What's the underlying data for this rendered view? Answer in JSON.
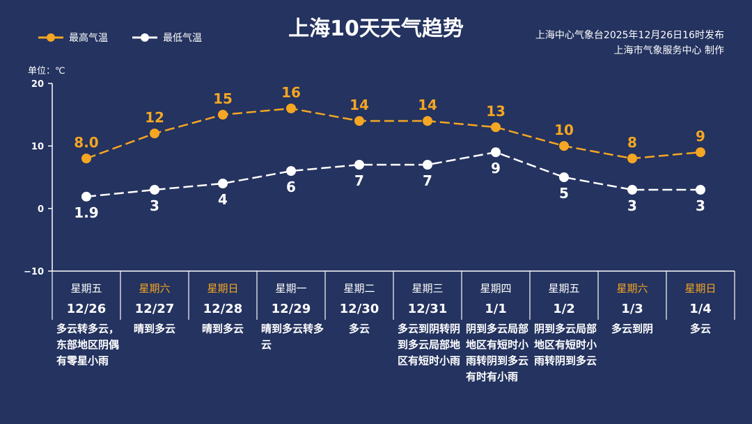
{
  "title": "上海10天天气趋势",
  "info": {
    "line1": "上海中心气象台2025年12月26日16时发布",
    "line2": "上海市气象服务中心 制作"
  },
  "unit": "单位：℃",
  "colors": {
    "background": "#24335f",
    "high": "#f5a623",
    "low": "#ffffff",
    "weekend": "#f5a623"
  },
  "chart_data": {
    "type": "line",
    "title": "上海10天天气趋势",
    "ylim": [
      -10,
      20
    ],
    "yticks": [
      "20",
      "10",
      "0",
      "−10"
    ],
    "ytick_values": [
      20,
      10,
      0,
      -10
    ],
    "grid": false,
    "legend_placement": "top-left",
    "categories": [
      "12/26",
      "12/27",
      "12/28",
      "12/29",
      "12/30",
      "12/31",
      "1/1",
      "1/2",
      "1/3",
      "1/4"
    ],
    "series": [
      {
        "name": "最高气温",
        "values": [
          8.0,
          12,
          15,
          16,
          14,
          14,
          13,
          10,
          8,
          9
        ],
        "labels": [
          "8.0",
          "12",
          "15",
          "16",
          "14",
          "14",
          "13",
          "10",
          "8",
          "9"
        ]
      },
      {
        "name": "最低气温",
        "values": [
          1.9,
          3,
          4,
          6,
          7,
          7,
          9,
          5,
          3,
          3
        ],
        "labels": [
          "1.9",
          "3",
          "4",
          "6",
          "7",
          "7",
          "9",
          "5",
          "3",
          "3"
        ]
      }
    ]
  },
  "days": [
    {
      "weekday": "星期五",
      "date": "12/26",
      "weather": "多云转多云，东部地区阴偶有零星小雨",
      "weekend": false
    },
    {
      "weekday": "星期六",
      "date": "12/27",
      "weather": "晴到多云",
      "weekend": true
    },
    {
      "weekday": "星期日",
      "date": "12/28",
      "weather": "晴到多云",
      "weekend": true
    },
    {
      "weekday": "星期一",
      "date": "12/29",
      "weather": "晴到多云转多云",
      "weekend": false
    },
    {
      "weekday": "星期二",
      "date": "12/30",
      "weather": "多云",
      "weekend": false
    },
    {
      "weekday": "星期三",
      "date": "12/31",
      "weather": "多云到阴转阴到多云局部地区有短时小雨",
      "weekend": false
    },
    {
      "weekday": "星期四",
      "date": "1/1",
      "weather": "阴到多云局部地区有短时小雨转阴到多云有时有小雨",
      "weekend": false
    },
    {
      "weekday": "星期五",
      "date": "1/2",
      "weather": "阴到多云局部地区有短时小雨转阴到多云",
      "weekend": false
    },
    {
      "weekday": "星期六",
      "date": "1/3",
      "weather": "多云到阴",
      "weekend": true
    },
    {
      "weekday": "星期日",
      "date": "1/4",
      "weather": "多云",
      "weekend": true
    }
  ]
}
